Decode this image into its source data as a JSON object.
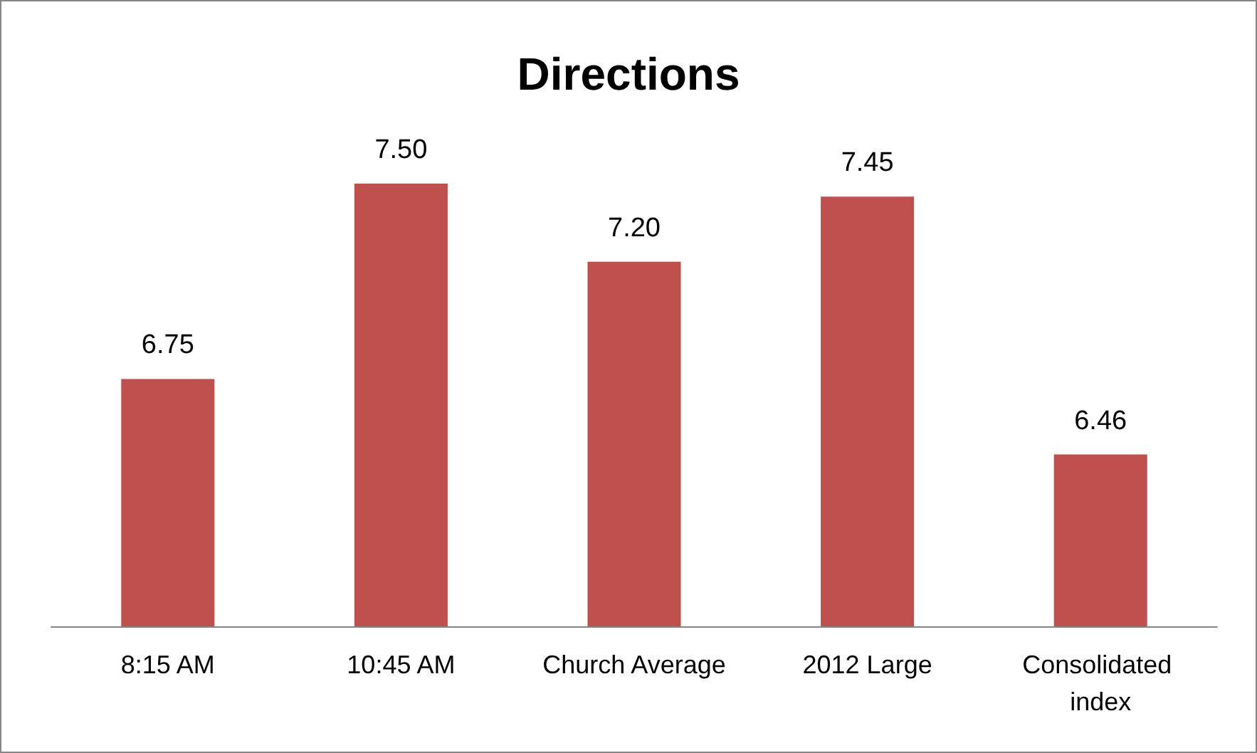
{
  "chart_data": {
    "type": "bar",
    "title": "Directions",
    "categories": [
      "8:15 AM",
      "10:45 AM",
      "Church Average",
      "2012 Large",
      "Consolidated index"
    ],
    "values": [
      6.75,
      7.5,
      7.2,
      7.45,
      6.46
    ],
    "value_labels": [
      "6.75",
      "7.50",
      "7.20",
      "7.45",
      "6.46"
    ],
    "color": "#c0504d",
    "ylim": [
      5.8,
      7.5
    ],
    "tick_labels": "x"
  }
}
